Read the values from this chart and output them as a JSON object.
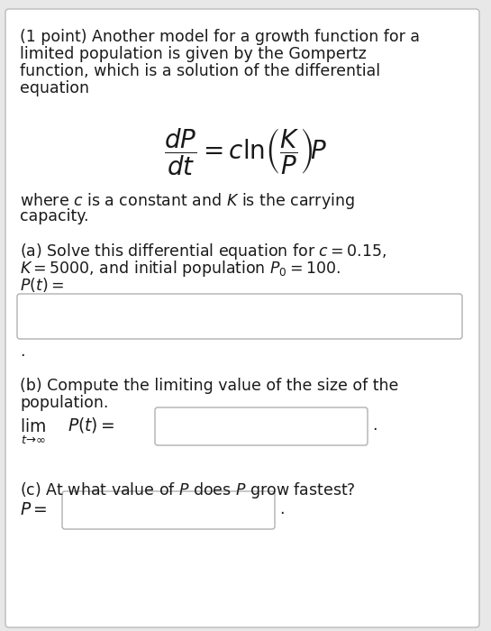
{
  "bg_color": "#e8e8e8",
  "content_bg": "#ffffff",
  "border_color": "#bbbbbb",
  "box_border": "#b0b0b0",
  "text_color": "#1a1a1a",
  "font_size_body": 12.5,
  "header": "(1 point) Another model for a growth function for a\nlimited population is given by the Gompertz\nfunction, which is a solution of the differential\nequation",
  "equation": "$\\dfrac{dP}{dt} = c\\ln\\!\\left(\\dfrac{K}{P}\\right)\\!P$",
  "where_line1": "where $c$ is a constant and $\\mathit{K}$ is the carrying",
  "where_line2": "capacity.",
  "part_a_line1": "(a) Solve this differential equation for $c = 0.15$,",
  "part_a_line2": "$K = 5000$, and initial population $P_0 = 100$.",
  "part_a_line3": "$P(t) =$",
  "dot1": ".",
  "part_b_line1": "(b) Compute the limiting value of the size of the",
  "part_b_line2": "population.",
  "part_b_lim": "$\\lim_{t\\to\\infty}$",
  "part_b_pt": "$P(t) =$",
  "dot2": ".",
  "part_c_line1": "(c) At what value of $P$ does $P$ grow fastest?",
  "part_c_eq": "$P =$",
  "dot3": "."
}
